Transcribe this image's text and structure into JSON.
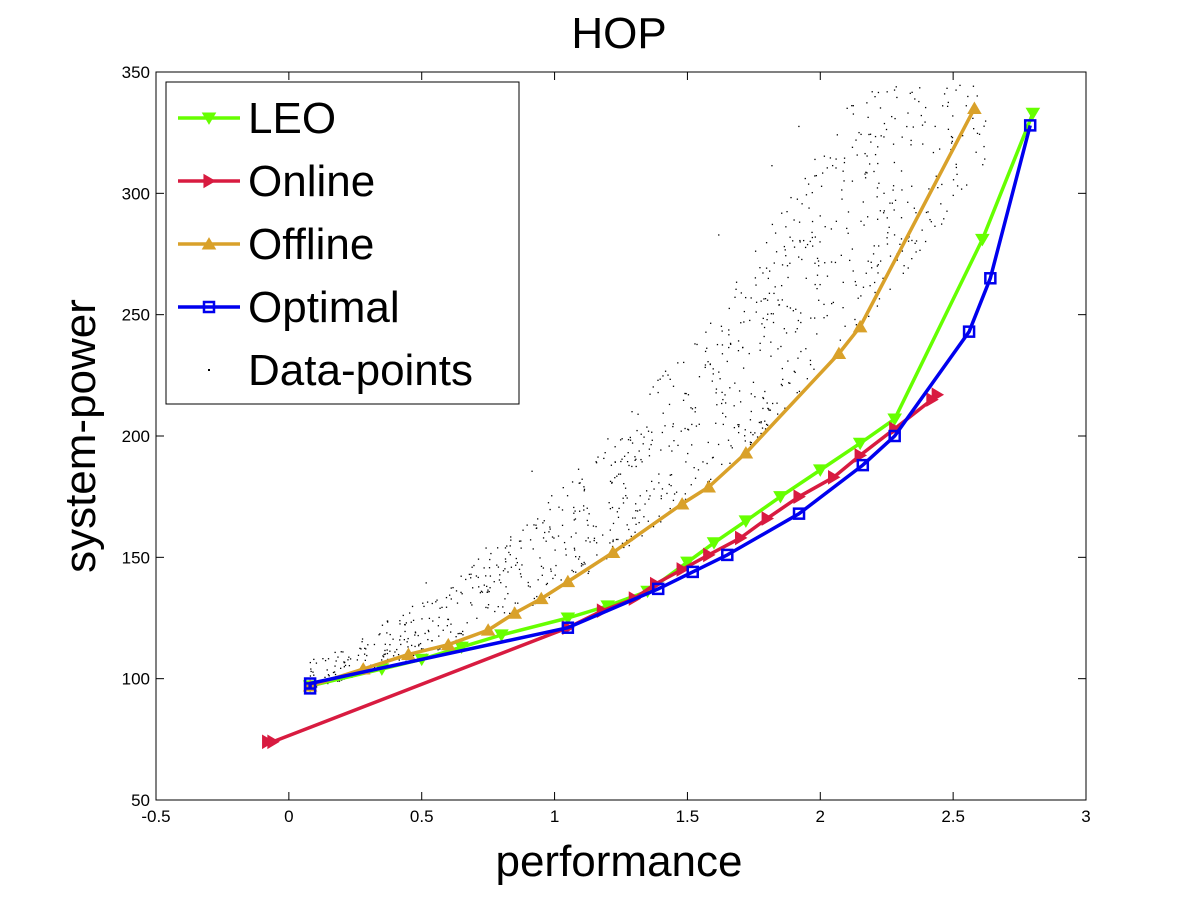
{
  "chart_data": {
    "type": "line",
    "title": "HOP",
    "xlabel": "performance",
    "ylabel": "system-power",
    "xlim": [
      -0.5,
      3
    ],
    "ylim": [
      50,
      350
    ],
    "xticks": [
      "-0.5",
      "0",
      "0.5",
      "1",
      "1.5",
      "2",
      "2.5",
      "3"
    ],
    "yticks": [
      "50",
      "100",
      "150",
      "200",
      "250",
      "300",
      "350"
    ],
    "grid": false,
    "legend_position": "top-left",
    "series": [
      {
        "name": "LEO",
        "color": "#66ff00",
        "marker": "triangle-down",
        "x": [
          0.08,
          0.35,
          0.5,
          0.65,
          0.8,
          1.05,
          1.2,
          1.35,
          1.5,
          1.6,
          1.72,
          1.85,
          2.0,
          2.15,
          2.28,
          2.61,
          2.8
        ],
        "y": [
          97,
          104,
          108,
          113,
          118,
          125,
          130,
          136,
          148,
          156,
          165,
          175,
          186,
          197,
          207,
          281,
          333
        ]
      },
      {
        "name": "Online",
        "color": "#d81b40",
        "marker": "triangle-right",
        "x": [
          -0.08,
          -0.06,
          1.05,
          1.18,
          1.3,
          1.38,
          1.48,
          1.58,
          1.7,
          1.8,
          1.92,
          2.05,
          2.15,
          2.28,
          2.42,
          2.44
        ],
        "y": [
          74,
          74,
          121,
          128,
          133,
          139,
          145,
          151,
          158,
          166,
          175,
          183,
          192,
          203,
          215,
          217
        ]
      },
      {
        "name": "Offline",
        "color": "#d9a12a",
        "marker": "triangle-up",
        "x": [
          0.08,
          0.28,
          0.45,
          0.6,
          0.75,
          0.85,
          0.95,
          1.05,
          1.22,
          1.48,
          1.58,
          1.72,
          2.07,
          2.15,
          2.58
        ],
        "y": [
          97,
          104,
          110,
          114,
          120,
          127,
          133,
          140,
          152,
          172,
          179,
          193,
          234,
          245,
          335
        ]
      },
      {
        "name": "Optimal",
        "color": "#0000ee",
        "marker": "square",
        "x": [
          0.08,
          0.08,
          1.05,
          1.39,
          1.52,
          1.65,
          1.92,
          2.16,
          2.28,
          2.56,
          2.64,
          2.79
        ],
        "y": [
          96,
          98,
          121,
          137,
          144,
          151,
          168,
          188,
          200,
          243,
          265,
          328
        ]
      },
      {
        "name": "Data-points",
        "color": "#000000",
        "marker": "dot",
        "scatter": true
      }
    ]
  }
}
